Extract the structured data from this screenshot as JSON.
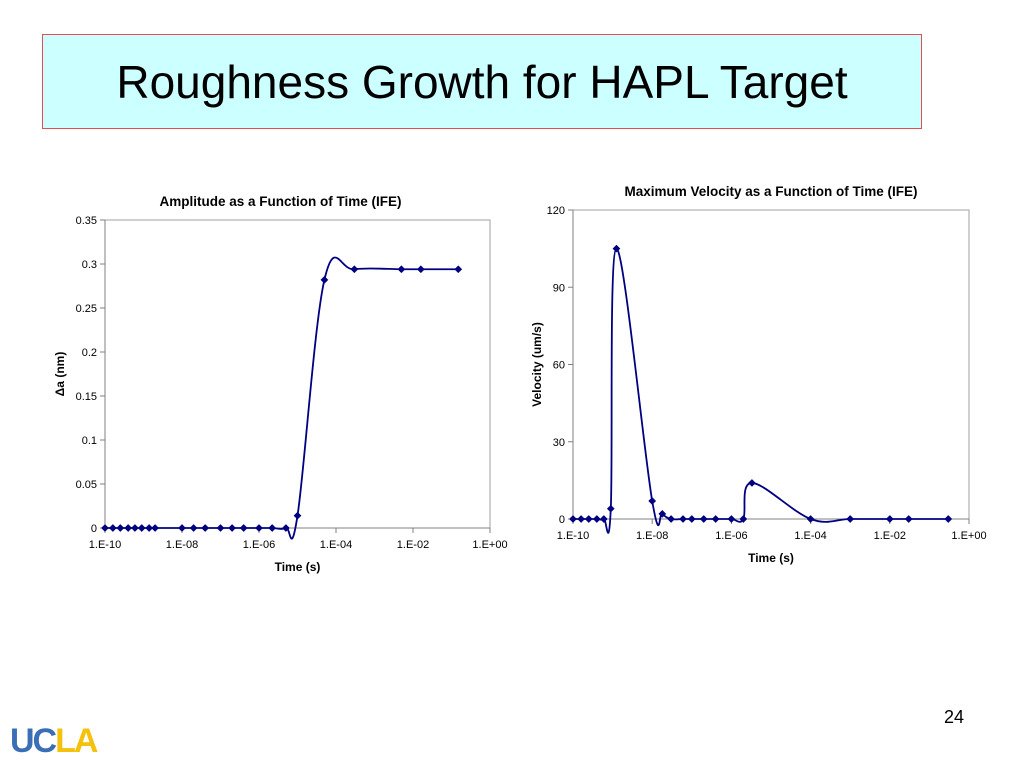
{
  "slide": {
    "title": "Roughness Growth for HAPL Target",
    "page_number": "24",
    "logo": {
      "part1": "UC",
      "part2": "LA"
    },
    "colors": {
      "title_bg": "#ccffff",
      "title_border": "#e05050",
      "series": "#000080"
    }
  },
  "chart_data": [
    {
      "type": "line",
      "title": "Amplitude as a Function of Time (IFE)",
      "xlabel": "Time (s)",
      "ylabel": "Δa (nm)",
      "xscale": "log",
      "xlim": [
        1e-10,
        1
      ],
      "ylim": [
        0,
        0.35
      ],
      "x_ticks": [
        1e-10,
        1e-08,
        1e-06,
        0.0001,
        0.01,
        1
      ],
      "x_tick_labels": [
        "1.E-10",
        "1.E-08",
        "1.E-06",
        "1.E-04",
        "1.E-02",
        "1.E+00"
      ],
      "y_ticks": [
        0,
        0.05,
        0.1,
        0.15,
        0.2,
        0.25,
        0.3,
        0.35
      ],
      "y_tick_labels": [
        "0",
        "0.05",
        "0.1",
        "0.15",
        "0.2",
        "0.25",
        "0.3",
        "0.35"
      ],
      "grid": false,
      "legend": "none",
      "series": [
        {
          "marker": "diamond",
          "points": [
            [
              1e-10,
              0
            ],
            [
              1.6e-10,
              0
            ],
            [
              2.5e-10,
              0
            ],
            [
              4e-10,
              0
            ],
            [
              6e-10,
              0
            ],
            [
              9e-10,
              0
            ],
            [
              1.4e-09,
              0
            ],
            [
              2e-09,
              0
            ],
            [
              1e-08,
              0
            ],
            [
              2e-08,
              0
            ],
            [
              4e-08,
              0
            ],
            [
              1e-07,
              0
            ],
            [
              2e-07,
              0
            ],
            [
              4e-07,
              0
            ],
            [
              1e-06,
              0
            ],
            [
              2.2e-06,
              0
            ],
            [
              5e-06,
              0
            ],
            [
              1e-05,
              0.014
            ],
            [
              5e-05,
              0.282
            ],
            [
              0.0003,
              0.294
            ],
            [
              0.005,
              0.294
            ],
            [
              0.016,
              0.294
            ],
            [
              0.15,
              0.294
            ]
          ]
        }
      ]
    },
    {
      "type": "line",
      "title": "Maximum Velocity as a Function of Time (IFE)",
      "xlabel": "Time (s)",
      "ylabel": "Velocity (um/s)",
      "xscale": "log",
      "xlim": [
        1e-10,
        1
      ],
      "ylim": [
        0,
        120
      ],
      "x_ticks": [
        1e-10,
        1e-08,
        1e-06,
        0.0001,
        0.01,
        1
      ],
      "x_tick_labels": [
        "1.E-10",
        "1.E-08",
        "1.E-06",
        "1.E-04",
        "1.E-02",
        "1.E+00"
      ],
      "y_ticks": [
        0,
        30,
        60,
        90,
        120
      ],
      "y_tick_labels": [
        "0",
        "30",
        "60",
        "90",
        "120"
      ],
      "grid": false,
      "legend": "none",
      "series": [
        {
          "marker": "diamond",
          "points": [
            [
              1e-10,
              0
            ],
            [
              1.6e-10,
              0
            ],
            [
              2.5e-10,
              0
            ],
            [
              4e-10,
              0
            ],
            [
              6e-10,
              0
            ],
            [
              9e-10,
              4
            ],
            [
              1.25e-09,
              105
            ],
            [
              1e-08,
              7
            ],
            [
              1.8e-08,
              2
            ],
            [
              3e-08,
              0
            ],
            [
              6e-08,
              0
            ],
            [
              1e-07,
              0
            ],
            [
              2e-07,
              0
            ],
            [
              4e-07,
              0
            ],
            [
              1e-06,
              0
            ],
            [
              2e-06,
              0
            ],
            [
              3.3e-06,
              14
            ],
            [
              0.0001,
              0
            ],
            [
              0.001,
              0
            ],
            [
              0.01,
              0
            ],
            [
              0.03,
              0
            ],
            [
              0.3,
              0
            ]
          ]
        }
      ]
    }
  ]
}
